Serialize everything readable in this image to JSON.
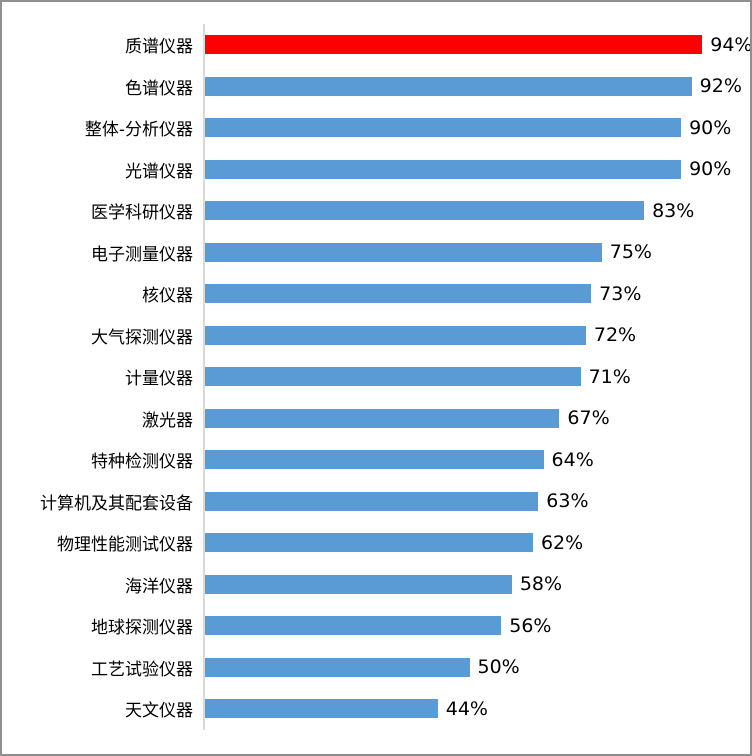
{
  "chart_data": {
    "type": "bar",
    "orientation": "horizontal",
    "title": "",
    "xlabel": "",
    "ylabel": "",
    "xlim": [
      0,
      100
    ],
    "grid": false,
    "legend": false,
    "categories": [
      "质谱仪器",
      "色谱仪器",
      "整体-分析仪器",
      "光谱仪器",
      "医学科研仪器",
      "电子测量仪器",
      "核仪器",
      "大气探测仪器",
      "计量仪器",
      "激光器",
      "特种检测仪器",
      "计算机及其配套设备",
      "物理性能测试仪器",
      "海洋仪器",
      "地球探测仪器",
      "工艺试验仪器",
      "天文仪器"
    ],
    "values": [
      94,
      92,
      90,
      90,
      83,
      75,
      73,
      72,
      71,
      67,
      64,
      63,
      62,
      58,
      56,
      50,
      44
    ],
    "value_labels": [
      "94%",
      "92%",
      "90%",
      "90%",
      "83%",
      "75%",
      "73%",
      "72%",
      "71%",
      "67%",
      "64%",
      "63%",
      "62%",
      "58%",
      "56%",
      "50%",
      "44%"
    ],
    "highlight_index": 0,
    "colors": {
      "bar": "#5b9bd5",
      "highlight": "#ff0000",
      "axis_line": "#d9d9d9",
      "text": "#000000",
      "frame_border": "#8f8f8f",
      "background": "#ffffff"
    }
  }
}
